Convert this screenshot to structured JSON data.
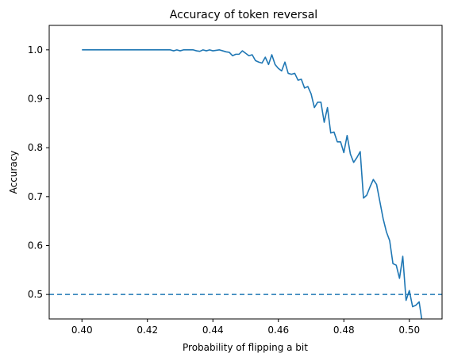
{
  "chart_data": {
    "type": "line",
    "title": "Accuracy of token reversal",
    "xlabel": "Probability of flipping a bit",
    "ylabel": "Accuracy",
    "xlim": [
      0.39,
      0.51
    ],
    "ylim": [
      0.45,
      1.05
    ],
    "xticks": [
      0.4,
      0.42,
      0.44,
      0.46,
      0.48,
      0.5
    ],
    "xtick_labels": [
      "0.40",
      "0.42",
      "0.44",
      "0.46",
      "0.48",
      "0.50"
    ],
    "yticks": [
      0.5,
      0.6,
      0.7,
      0.8,
      0.9,
      1.0
    ],
    "ytick_labels": [
      "0.5",
      "0.6",
      "0.7",
      "0.8",
      "0.9",
      "1.0"
    ],
    "grid": false,
    "colors": {
      "series": "#1f77b4",
      "reference": "#1f77b4"
    },
    "reference_line": {
      "y": 0.5,
      "style": "dashed"
    },
    "series": [
      {
        "x": [
          0.4,
          0.41,
          0.42,
          0.427,
          0.428,
          0.429,
          0.43,
          0.431,
          0.432,
          0.433,
          0.434,
          0.435,
          0.436,
          0.437,
          0.438,
          0.439,
          0.44,
          0.441,
          0.442,
          0.443,
          0.444,
          0.445,
          0.446,
          0.447,
          0.448,
          0.449,
          0.45,
          0.451,
          0.452,
          0.453,
          0.454,
          0.455,
          0.456,
          0.457,
          0.458,
          0.459,
          0.46,
          0.461,
          0.462,
          0.463,
          0.464,
          0.465,
          0.466,
          0.467,
          0.468,
          0.469,
          0.47,
          0.471,
          0.472,
          0.473,
          0.474,
          0.475,
          0.476,
          0.477,
          0.478,
          0.479,
          0.48,
          0.481,
          0.482,
          0.483,
          0.484,
          0.485,
          0.486,
          0.487,
          0.488,
          0.489,
          0.49,
          0.491,
          0.492,
          0.493,
          0.494,
          0.495,
          0.496,
          0.497,
          0.498,
          0.499,
          0.5,
          0.501,
          0.502,
          0.503,
          0.504
        ],
        "values": [
          1.0,
          1.0,
          1.0,
          1.0,
          0.998,
          1.0,
          0.998,
          1.0,
          1.0,
          1.0,
          1.0,
          0.998,
          0.997,
          1.0,
          0.998,
          1.0,
          0.998,
          0.999,
          1.0,
          0.998,
          0.996,
          0.995,
          0.988,
          0.991,
          0.991,
          0.998,
          0.993,
          0.988,
          0.99,
          0.978,
          0.975,
          0.973,
          0.985,
          0.97,
          0.99,
          0.97,
          0.962,
          0.957,
          0.975,
          0.952,
          0.95,
          0.952,
          0.938,
          0.94,
          0.922,
          0.925,
          0.91,
          0.882,
          0.893,
          0.893,
          0.852,
          0.882,
          0.83,
          0.832,
          0.812,
          0.812,
          0.79,
          0.825,
          0.787,
          0.77,
          0.78,
          0.792,
          0.697,
          0.703,
          0.72,
          0.735,
          0.725,
          0.69,
          0.655,
          0.628,
          0.61,
          0.563,
          0.56,
          0.533,
          0.578,
          0.488,
          0.508,
          0.475,
          0.478,
          0.485,
          0.44
        ]
      }
    ]
  }
}
